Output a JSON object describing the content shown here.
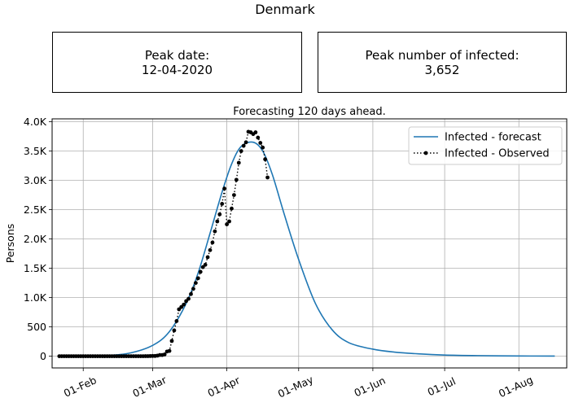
{
  "figure": {
    "title": "Denmark",
    "peak_date_label": "Peak date:",
    "peak_date_value": "12-04-2020",
    "peak_infected_label": "Peak number of infected:",
    "peak_infected_value": "3,652"
  },
  "chart_data": {
    "type": "line",
    "title": "Forecasting 120 days ahead.",
    "xlabel": "",
    "ylabel": "Persons",
    "x_axis": "date",
    "xlim": [
      "2020-01-19",
      "2020-08-21"
    ],
    "ylim": [
      -200,
      4050
    ],
    "grid": true,
    "legend_position": "top-right",
    "x_tick_labels": [
      "01-Feb",
      "01-Mar",
      "01-Apr",
      "01-May",
      "01-Jun",
      "01-Jul",
      "01-Aug"
    ],
    "x_tick_dates": [
      "2020-02-01",
      "2020-03-01",
      "2020-04-01",
      "2020-05-01",
      "2020-06-01",
      "2020-07-01",
      "2020-08-01"
    ],
    "y_ticks": [
      0,
      500,
      1000,
      1500,
      2000,
      2500,
      3000,
      3500,
      4000
    ],
    "y_tick_labels": [
      "0",
      "500",
      "1.0K",
      "1.5K",
      "2.0K",
      "2.5K",
      "3.0K",
      "3.5K",
      "4.0K"
    ],
    "series": [
      {
        "name": "Infected - forecast",
        "color": "#1f77b4",
        "style": "solid",
        "points": [
          [
            "2020-01-22",
            0
          ],
          [
            "2020-02-01",
            3
          ],
          [
            "2020-02-10",
            12
          ],
          [
            "2020-02-20",
            50
          ],
          [
            "2020-03-01",
            185
          ],
          [
            "2020-03-08",
            420
          ],
          [
            "2020-03-15",
            900
          ],
          [
            "2020-03-20",
            1420
          ],
          [
            "2020-03-25",
            2100
          ],
          [
            "2020-03-30",
            2800
          ],
          [
            "2020-04-03",
            3280
          ],
          [
            "2020-04-07",
            3580
          ],
          [
            "2020-04-12",
            3652
          ],
          [
            "2020-04-16",
            3500
          ],
          [
            "2020-04-20",
            3100
          ],
          [
            "2020-04-25",
            2420
          ],
          [
            "2020-05-01",
            1650
          ],
          [
            "2020-05-08",
            900
          ],
          [
            "2020-05-15",
            450
          ],
          [
            "2020-05-22",
            230
          ],
          [
            "2020-06-01",
            120
          ],
          [
            "2020-06-10",
            70
          ],
          [
            "2020-06-20",
            40
          ],
          [
            "2020-07-01",
            20
          ],
          [
            "2020-07-15",
            10
          ],
          [
            "2020-08-01",
            4
          ],
          [
            "2020-08-16",
            2
          ]
        ]
      },
      {
        "name": "Infected - Observed",
        "color": "#000000",
        "style": "dotted-markers",
        "points": [
          [
            "2020-01-22",
            0
          ],
          [
            "2020-01-23",
            0
          ],
          [
            "2020-01-24",
            0
          ],
          [
            "2020-01-25",
            0
          ],
          [
            "2020-01-26",
            0
          ],
          [
            "2020-01-27",
            0
          ],
          [
            "2020-01-28",
            0
          ],
          [
            "2020-01-29",
            0
          ],
          [
            "2020-01-30",
            0
          ],
          [
            "2020-01-31",
            0
          ],
          [
            "2020-02-01",
            0
          ],
          [
            "2020-02-02",
            0
          ],
          [
            "2020-02-03",
            0
          ],
          [
            "2020-02-04",
            0
          ],
          [
            "2020-02-05",
            0
          ],
          [
            "2020-02-06",
            0
          ],
          [
            "2020-02-07",
            0
          ],
          [
            "2020-02-08",
            0
          ],
          [
            "2020-02-09",
            0
          ],
          [
            "2020-02-10",
            0
          ],
          [
            "2020-02-11",
            0
          ],
          [
            "2020-02-12",
            0
          ],
          [
            "2020-02-13",
            0
          ],
          [
            "2020-02-14",
            0
          ],
          [
            "2020-02-15",
            0
          ],
          [
            "2020-02-16",
            0
          ],
          [
            "2020-02-17",
            0
          ],
          [
            "2020-02-18",
            0
          ],
          [
            "2020-02-19",
            0
          ],
          [
            "2020-02-20",
            0
          ],
          [
            "2020-02-21",
            0
          ],
          [
            "2020-02-22",
            0
          ],
          [
            "2020-02-23",
            0
          ],
          [
            "2020-02-24",
            0
          ],
          [
            "2020-02-25",
            0
          ],
          [
            "2020-02-26",
            0
          ],
          [
            "2020-02-27",
            1
          ],
          [
            "2020-02-28",
            1
          ],
          [
            "2020-02-29",
            3
          ],
          [
            "2020-03-01",
            4
          ],
          [
            "2020-03-02",
            4
          ],
          [
            "2020-03-03",
            10
          ],
          [
            "2020-03-04",
            20
          ],
          [
            "2020-03-05",
            20
          ],
          [
            "2020-03-06",
            30
          ],
          [
            "2020-03-07",
            80
          ],
          [
            "2020-03-08",
            90
          ],
          [
            "2020-03-09",
            260
          ],
          [
            "2020-03-10",
            440
          ],
          [
            "2020-03-11",
            600
          ],
          [
            "2020-03-12",
            800
          ],
          [
            "2020-03-13",
            840
          ],
          [
            "2020-03-14",
            880
          ],
          [
            "2020-03-15",
            940
          ],
          [
            "2020-03-16",
            980
          ],
          [
            "2020-03-17",
            1060
          ],
          [
            "2020-03-18",
            1150
          ],
          [
            "2020-03-19",
            1250
          ],
          [
            "2020-03-20",
            1330
          ],
          [
            "2020-03-21",
            1440
          ],
          [
            "2020-03-22",
            1520
          ],
          [
            "2020-03-23",
            1560
          ],
          [
            "2020-03-24",
            1690
          ],
          [
            "2020-03-25",
            1810
          ],
          [
            "2020-03-26",
            1940
          ],
          [
            "2020-03-27",
            2130
          ],
          [
            "2020-03-28",
            2300
          ],
          [
            "2020-03-29",
            2420
          ],
          [
            "2020-03-30",
            2600
          ],
          [
            "2020-03-31",
            2860
          ],
          [
            "2020-04-01",
            2250
          ],
          [
            "2020-04-02",
            2300
          ],
          [
            "2020-04-03",
            2520
          ],
          [
            "2020-04-04",
            2750
          ],
          [
            "2020-04-05",
            3010
          ],
          [
            "2020-04-06",
            3300
          ],
          [
            "2020-04-07",
            3500
          ],
          [
            "2020-04-08",
            3590
          ],
          [
            "2020-04-09",
            3650
          ],
          [
            "2020-04-10",
            3830
          ],
          [
            "2020-04-11",
            3820
          ],
          [
            "2020-04-12",
            3790
          ],
          [
            "2020-04-13",
            3820
          ],
          [
            "2020-04-14",
            3730
          ],
          [
            "2020-04-15",
            3640
          ],
          [
            "2020-04-16",
            3560
          ],
          [
            "2020-04-17",
            3360
          ],
          [
            "2020-04-18",
            3050
          ]
        ]
      }
    ]
  }
}
